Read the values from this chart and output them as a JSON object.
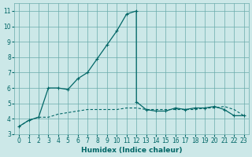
{
  "xlabel": "Humidex (Indice chaleur)",
  "bg_color": "#cce8e8",
  "grid_color": "#6aabab",
  "line_color": "#006666",
  "xlim": [
    -0.5,
    23.5
  ],
  "ylim": [
    3,
    11.5
  ],
  "yticks": [
    3,
    4,
    5,
    6,
    7,
    8,
    9,
    10,
    11
  ],
  "xticks": [
    0,
    1,
    2,
    3,
    4,
    5,
    6,
    7,
    8,
    9,
    10,
    11,
    12,
    13,
    14,
    15,
    16,
    17,
    18,
    19,
    20,
    21,
    22,
    23
  ],
  "series1_x": [
    0,
    1,
    2,
    3,
    4,
    5,
    6,
    7,
    8,
    9,
    10,
    11,
    12,
    12.01,
    13,
    14,
    15,
    16,
    17,
    18,
    19,
    20,
    21,
    22,
    23
  ],
  "series1_y": [
    3.5,
    3.9,
    4.1,
    6.0,
    6.0,
    5.9,
    6.6,
    7.0,
    7.9,
    8.8,
    9.7,
    10.8,
    11.0,
    5.1,
    4.6,
    4.5,
    4.5,
    4.7,
    4.6,
    4.7,
    4.7,
    4.8,
    4.6,
    4.2,
    4.2
  ],
  "series2_x": [
    0,
    1,
    2,
    3,
    4,
    5,
    6,
    7,
    8,
    9,
    10,
    11,
    12,
    13,
    14,
    15,
    16,
    17,
    18,
    19,
    20,
    21,
    22,
    23
  ],
  "series2_y": [
    3.5,
    3.9,
    4.1,
    4.1,
    4.3,
    4.4,
    4.5,
    4.6,
    4.6,
    4.6,
    4.6,
    4.7,
    4.7,
    4.6,
    4.6,
    4.6,
    4.6,
    4.6,
    4.6,
    4.7,
    4.7,
    4.8,
    4.6,
    4.2
  ]
}
